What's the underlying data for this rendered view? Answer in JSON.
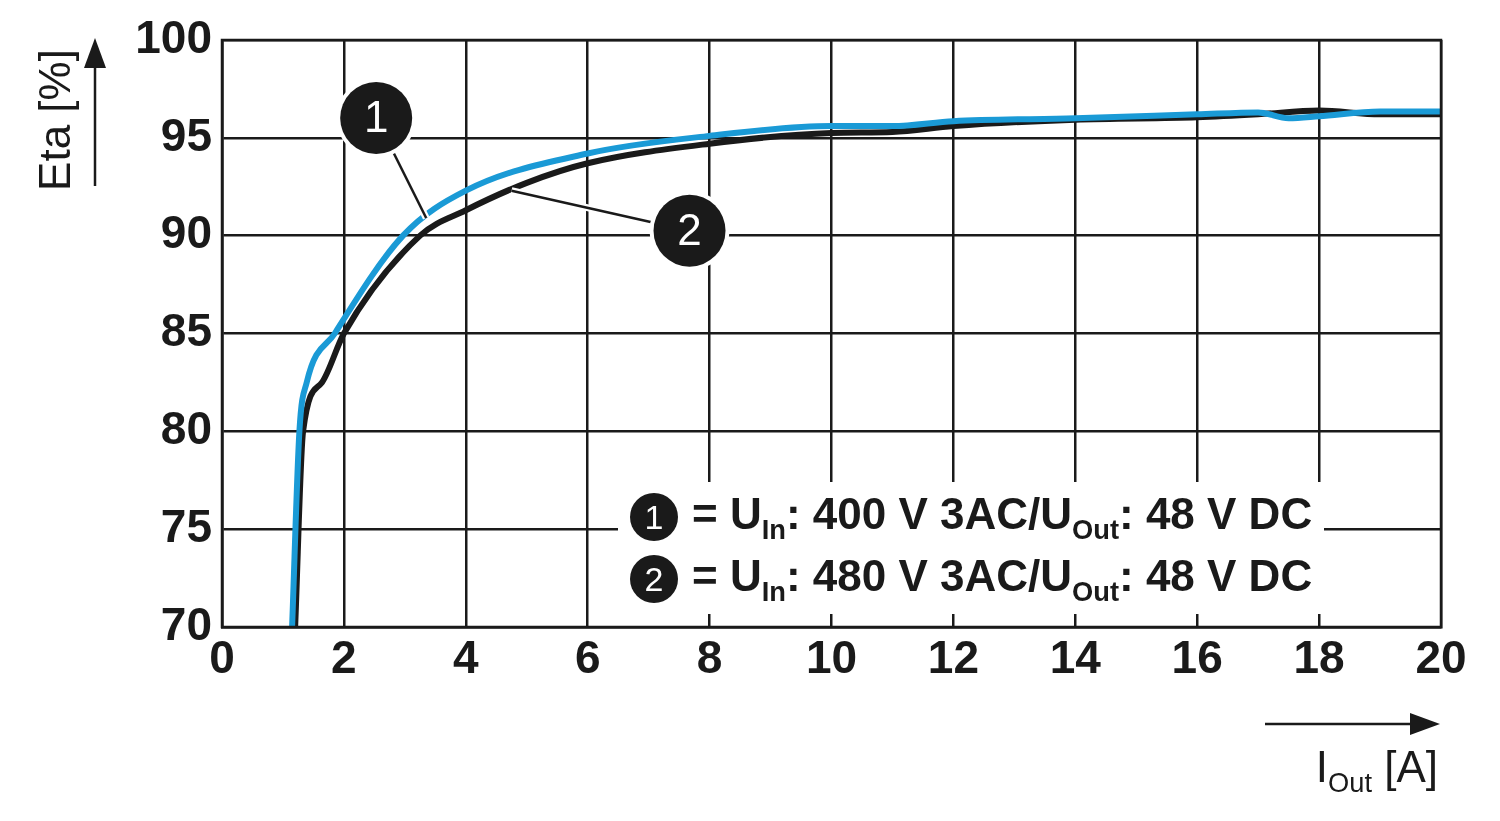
{
  "chart_data": {
    "type": "line",
    "xlabel": "I$_{Out}$ [A]",
    "ylabel": "Eta [%]",
    "xlim": [
      0,
      20
    ],
    "xticks": [
      0,
      2,
      4,
      6,
      8,
      10,
      12,
      14,
      16,
      18,
      20
    ],
    "ylim": [
      70,
      100
    ],
    "yticks": [
      70,
      75,
      80,
      85,
      90,
      95,
      100
    ],
    "grid": true,
    "legend": false,
    "marker": "none",
    "line_style": "solid",
    "series": [
      {
        "color": "#1a9ad6",
        "x": [
          1.15,
          1.27,
          1.39,
          1.85,
          2.97,
          4,
          6,
          8,
          10,
          11,
          12,
          14,
          16,
          17,
          17.5,
          18,
          19,
          20
        ],
        "values": [
          70,
          80,
          82.5,
          85,
          90,
          92.3,
          94.2,
          95.1,
          95.6,
          95.6,
          95.85,
          96.0,
          96.2,
          96.3,
          96.0,
          96.1,
          96.35,
          96.35
        ]
      },
      {
        "color": "#1a1a1a",
        "x": [
          1.2,
          1.33,
          1.64,
          2.0,
          3.25,
          4,
          5,
          6,
          8,
          10,
          11,
          12,
          14,
          16,
          17,
          18,
          19,
          20
        ],
        "values": [
          70,
          80,
          82.5,
          85,
          90,
          91.3,
          92.7,
          93.7,
          94.7,
          95.25,
          95.3,
          95.6,
          95.93,
          96.05,
          96.2,
          96.4,
          96.2,
          96.2
        ]
      }
    ],
    "annotations": [
      {
        "text": "1",
        "x": 3.35,
        "y": 90.9
      },
      {
        "text": "2",
        "x": 4.75,
        "y": 92.3
      },
      "= U$_{In}$: 400 V 3AC/U$_{Out}$: 48 V DC",
      "= U$_{In}$: 480 V 3AC/U$_{Out}$: 48 V DC"
    ]
  }
}
